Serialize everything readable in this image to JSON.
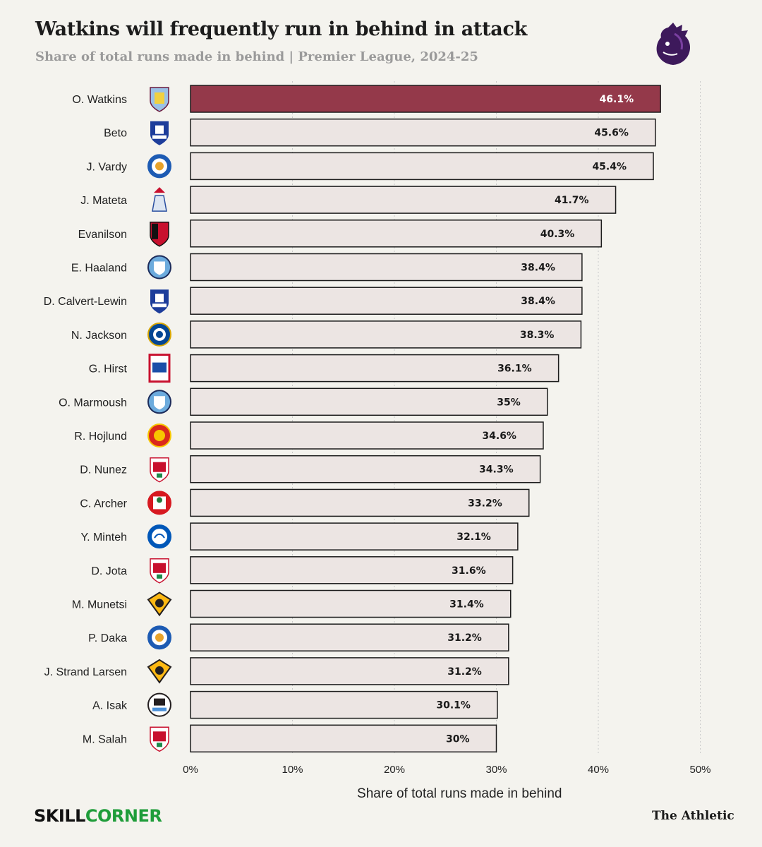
{
  "header": {
    "title": "Watkins will frequently run in behind in attack",
    "subtitle": "Share of total runs made in behind | Premier League, 2024-25"
  },
  "icons": {
    "league_logo": "premier-league-lion-icon"
  },
  "colors": {
    "highlight_bar": "#94394a",
    "default_bar": "#ece5e3",
    "bar_border": "#1c1c1c",
    "grid": "#c9c9c9",
    "background": "#f4f3ee"
  },
  "chart_data": {
    "type": "bar",
    "orientation": "horizontal",
    "xlabel": "Share of total runs made in behind",
    "xlim": [
      0,
      50
    ],
    "xticks": [
      0,
      10,
      20,
      30,
      40,
      50
    ],
    "xtick_labels": [
      "0%",
      "10%",
      "20%",
      "30%",
      "40%",
      "50%"
    ],
    "grid": true,
    "highlight": "O. Watkins",
    "categories": [
      "O. Watkins",
      "Beto",
      "J. Vardy",
      "J. Mateta",
      "Evanilson",
      "E. Haaland",
      "D. Calvert-Lewin",
      "N. Jackson",
      "G. Hirst",
      "O. Marmoush",
      "R. Hojlund",
      "D. Nunez",
      "C. Archer",
      "Y. Minteh",
      "D. Jota",
      "M. Munetsi",
      "P. Daka",
      "J. Strand Larsen",
      "A. Isak",
      "M. Salah"
    ],
    "values": [
      46.1,
      45.6,
      45.4,
      41.7,
      40.3,
      38.4,
      38.4,
      38.3,
      36.1,
      35,
      34.6,
      34.3,
      33.2,
      32.1,
      31.6,
      31.4,
      31.2,
      31.2,
      30.1,
      30
    ],
    "value_labels": [
      "46.1%",
      "45.6%",
      "45.4%",
      "41.7%",
      "40.3%",
      "38.4%",
      "38.4%",
      "38.3%",
      "36.1%",
      "35%",
      "34.6%",
      "34.3%",
      "33.2%",
      "32.1%",
      "31.6%",
      "31.4%",
      "31.2%",
      "31.2%",
      "30.1%",
      "30%"
    ],
    "club_icons": [
      "aston-villa-crest-icon",
      "everton-crest-icon",
      "leicester-city-crest-icon",
      "crystal-palace-crest-icon",
      "bournemouth-crest-icon",
      "manchester-city-crest-icon",
      "everton-crest-icon",
      "chelsea-crest-icon",
      "ipswich-town-crest-icon",
      "manchester-city-crest-icon",
      "manchester-united-crest-icon",
      "liverpool-crest-icon",
      "southampton-crest-icon",
      "brighton-crest-icon",
      "liverpool-crest-icon",
      "wolves-crest-icon",
      "leicester-city-crest-icon",
      "wolves-crest-icon",
      "newcastle-crest-icon",
      "liverpool-crest-icon"
    ]
  },
  "footer": {
    "brand_left_part1": "SKILL",
    "brand_left_part2": "CORNER",
    "brand_right": "The Athletic"
  }
}
